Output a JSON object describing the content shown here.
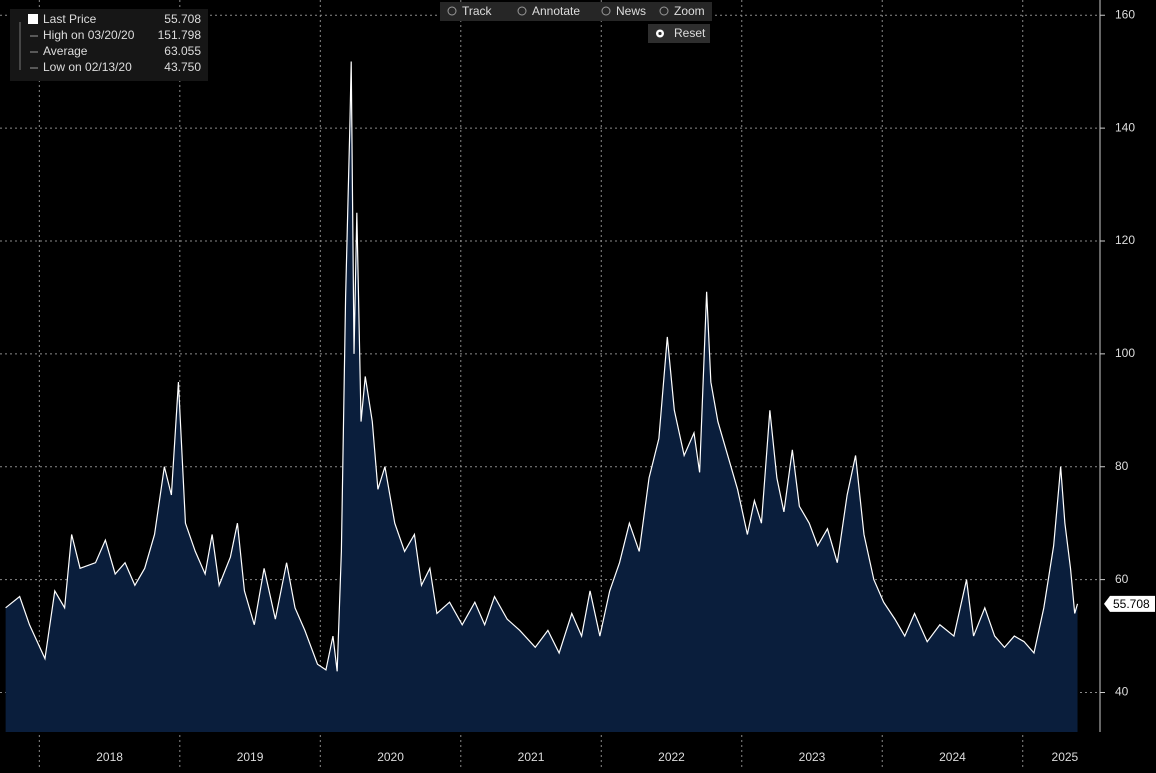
{
  "toolbar": [
    "Track",
    "Annotate",
    "News",
    "Zoom"
  ],
  "reset": "Reset",
  "chart_data": {
    "type": "area",
    "series": [
      {
        "name": "Last Price",
        "color": "#ffffff",
        "fill": "#0a1e3c",
        "x": [
          2017.76,
          2017.86,
          2017.93,
          2018.04,
          2018.11,
          2018.18,
          2018.23,
          2018.29,
          2018.4,
          2018.47,
          2018.54,
          2018.61,
          2018.68,
          2018.75,
          2018.82,
          2018.89,
          2018.94,
          2018.99,
          2019.04,
          2019.11,
          2019.18,
          2019.23,
          2019.28,
          2019.36,
          2019.41,
          2019.46,
          2019.53,
          2019.6,
          2019.68,
          2019.76,
          2019.82,
          2019.89,
          2019.98,
          2020.04,
          2020.09,
          2020.12,
          2020.15,
          2020.18,
          2020.21,
          2020.22,
          2020.24,
          2020.26,
          2020.29,
          2020.32,
          2020.37,
          2020.41,
          2020.46,
          2020.53,
          2020.6,
          2020.67,
          2020.72,
          2020.78,
          2020.83,
          2020.92,
          2021.01,
          2021.1,
          2021.17,
          2021.24,
          2021.33,
          2021.42,
          2021.53,
          2021.62,
          2021.7,
          2021.79,
          2021.86,
          2021.92,
          2021.99,
          2022.06,
          2022.13,
          2022.2,
          2022.27,
          2022.34,
          2022.41,
          2022.47,
          2022.52,
          2022.59,
          2022.66,
          2022.7,
          2022.75,
          2022.78,
          2022.83,
          2022.9,
          2022.97,
          2023.04,
          2023.09,
          2023.14,
          2023.2,
          2023.25,
          2023.3,
          2023.36,
          2023.41,
          2023.48,
          2023.54,
          2023.61,
          2023.68,
          2023.75,
          2023.81,
          2023.87,
          2023.94,
          2024.01,
          2024.09,
          2024.16,
          2024.23,
          2024.32,
          2024.41,
          2024.51,
          2024.6,
          2024.65,
          2024.73,
          2024.8,
          2024.87,
          2024.94,
          2025.01,
          2025.08,
          2025.15,
          2025.22,
          2025.27,
          2025.3,
          2025.34,
          2025.37,
          2025.39
        ],
        "values": [
          55,
          57,
          52,
          46,
          58,
          55,
          68,
          62,
          63,
          67,
          61,
          63,
          59,
          62,
          68,
          80,
          75,
          95,
          70,
          65,
          61,
          68,
          59,
          64,
          70,
          58,
          52,
          62,
          53,
          63,
          55,
          51,
          45,
          44,
          50,
          43.75,
          65,
          110,
          140,
          151.798,
          100,
          125,
          88,
          96,
          88,
          76,
          80,
          70,
          65,
          68,
          59,
          62,
          54,
          56,
          52,
          56,
          52,
          57,
          53,
          51,
          48,
          51,
          47,
          54,
          50,
          58,
          50,
          58,
          63,
          70,
          65,
          78,
          85,
          103,
          90,
          82,
          86,
          79,
          111,
          95,
          88,
          82,
          76,
          68,
          74,
          70,
          90,
          78,
          72,
          83,
          73,
          70,
          66,
          69,
          63,
          75,
          82,
          68,
          60,
          56,
          53,
          50,
          54,
          49,
          52,
          50,
          60,
          50,
          55,
          50,
          48,
          50,
          49,
          47,
          55,
          66,
          80,
          70,
          62,
          54,
          55.708
        ]
      }
    ],
    "stats": [
      {
        "name": "High on 03/20/20",
        "value": 151.798
      },
      {
        "name": "Average",
        "value": 63.055
      },
      {
        "name": "Low on 02/13/20",
        "value": 43.75,
        "value_label": "43.750"
      }
    ],
    "xlim": [
      2017.72,
      2025.55
    ],
    "xgrid": [
      2018,
      2019,
      2020,
      2021,
      2022,
      2023,
      2024,
      2025
    ],
    "xticks": [
      {
        "value": 2018.5,
        "label": "2018"
      },
      {
        "value": 2019.5,
        "label": "2019"
      },
      {
        "value": 2020.5,
        "label": "2020"
      },
      {
        "value": 2021.5,
        "label": "2021"
      },
      {
        "value": 2022.5,
        "label": "2022"
      },
      {
        "value": 2023.5,
        "label": "2023"
      },
      {
        "value": 2024.5,
        "label": "2024"
      },
      {
        "value": 2025.3,
        "label": "2025"
      }
    ],
    "ylim": [
      33,
      162.7
    ],
    "yticks": [
      40,
      60,
      80,
      100,
      120,
      140,
      160
    ],
    "grid": true
  }
}
